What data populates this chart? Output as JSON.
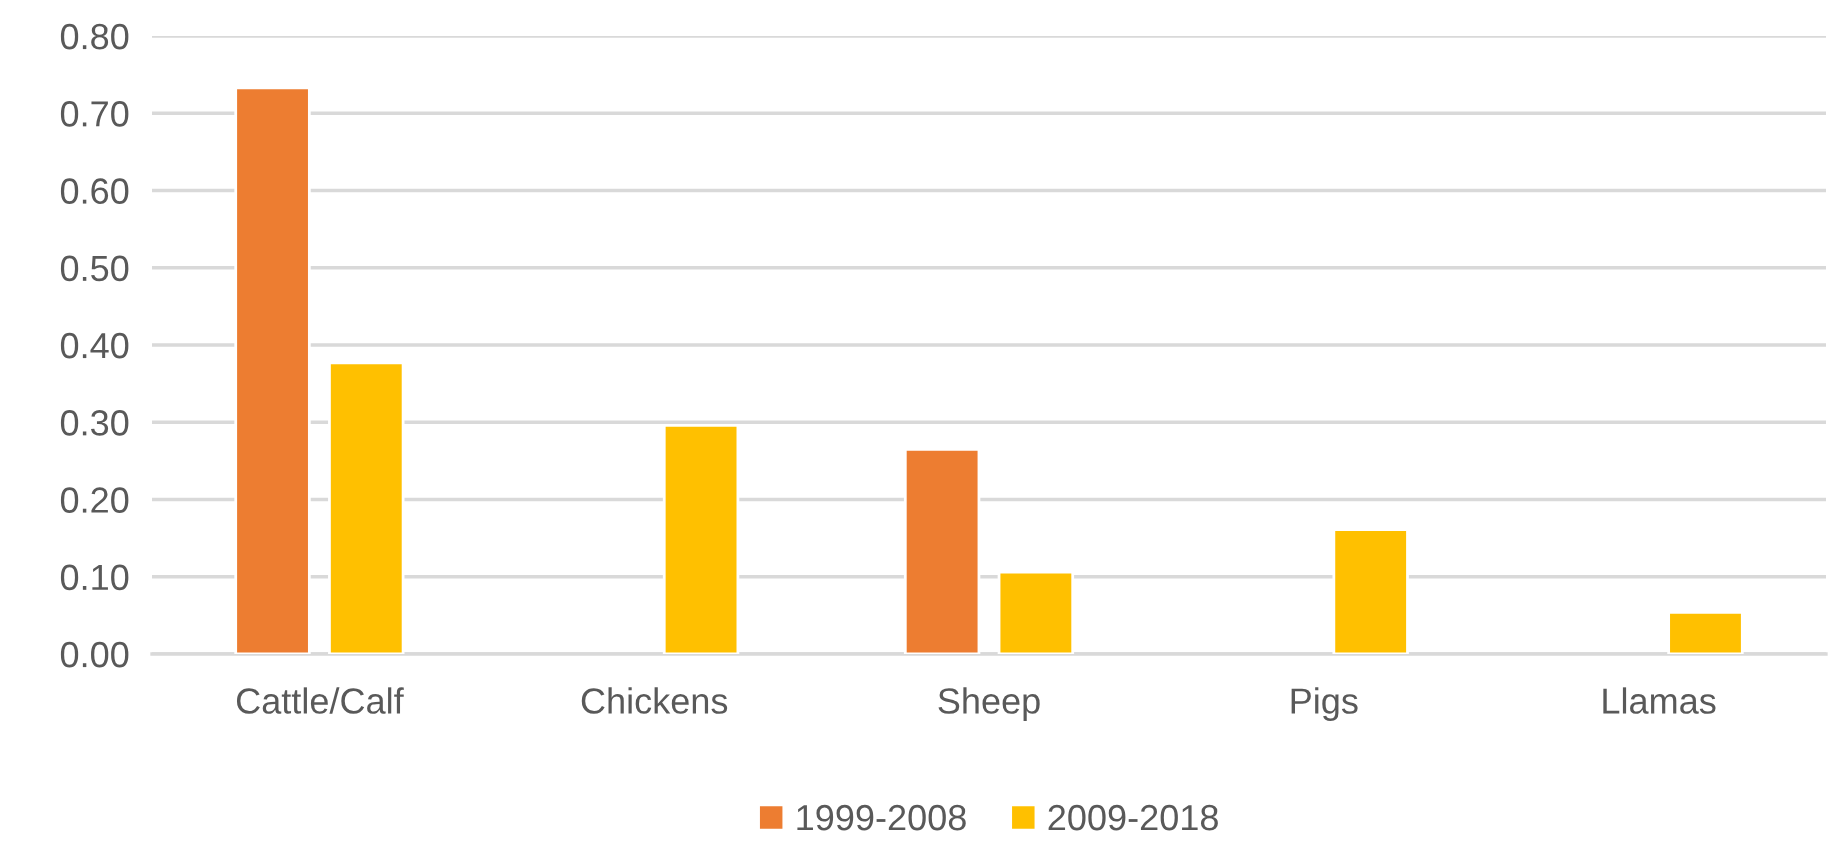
{
  "chart_data": {
    "type": "bar",
    "categories": [
      "Cattle/Calf",
      "Chickens",
      "Sheep",
      "Pigs",
      "Llamas"
    ],
    "series": [
      {
        "name": "1999-2008",
        "color": "#ed7d31",
        "values": [
          0.733,
          null,
          0.265,
          null,
          null
        ]
      },
      {
        "name": "2009-2018",
        "color": "#ffc000",
        "values": [
          0.377,
          0.296,
          0.106,
          0.161,
          0.054
        ]
      }
    ],
    "ylim": [
      0,
      0.8
    ],
    "yticks": [
      {
        "value": 0,
        "label": "0.00"
      },
      {
        "value": 0.1,
        "label": "0.10"
      },
      {
        "value": 0.2,
        "label": "0.20"
      },
      {
        "value": 0.3,
        "label": "0.30"
      },
      {
        "value": 0.4,
        "label": "0.40"
      },
      {
        "value": 0.5,
        "label": "0.50"
      },
      {
        "value": 0.6,
        "label": "0.60"
      },
      {
        "value": 0.7,
        "label": "0.70"
      },
      {
        "value": 0.8,
        "label": "0.80"
      }
    ],
    "grid": "y",
    "legend": "bottom"
  }
}
